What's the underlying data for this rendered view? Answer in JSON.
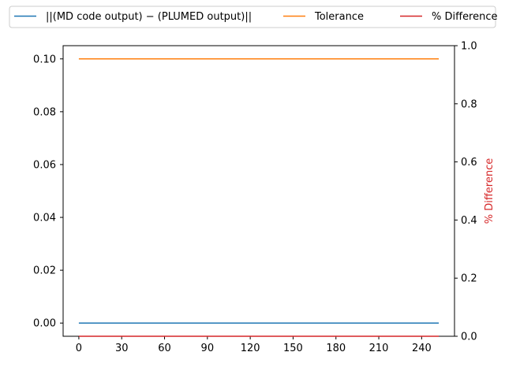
{
  "chart_data": {
    "type": "line",
    "title": "",
    "xlabel": "",
    "ylabel": "",
    "y2label": "% Difference",
    "xlim": [
      -11,
      263
    ],
    "ylim": [
      -0.005,
      0.105
    ],
    "y2lim": [
      0,
      1
    ],
    "xticks": [
      0,
      30,
      60,
      90,
      120,
      150,
      180,
      210,
      240
    ],
    "yticks": [
      0.0,
      0.02,
      0.04,
      0.06,
      0.08,
      0.1
    ],
    "y2ticks": [
      0.0,
      0.2,
      0.4,
      0.6,
      0.8,
      1.0
    ],
    "grid": false,
    "legend_position": "top",
    "legend_ncol": 3,
    "series": [
      {
        "name": "||(MD code output) − (PLUMED output)||",
        "axis": "left",
        "color": "#1f77b4",
        "x": [
          0,
          252
        ],
        "y": [
          0,
          0
        ]
      },
      {
        "name": "Tolerance",
        "axis": "left",
        "color": "#ff7f0e",
        "x": [
          0,
          252
        ],
        "y": [
          0.1,
          0.1
        ]
      },
      {
        "name": "% Difference",
        "axis": "right",
        "color": "#d62728",
        "x": [
          0,
          252
        ],
        "y": [
          0,
          0
        ]
      }
    ]
  }
}
